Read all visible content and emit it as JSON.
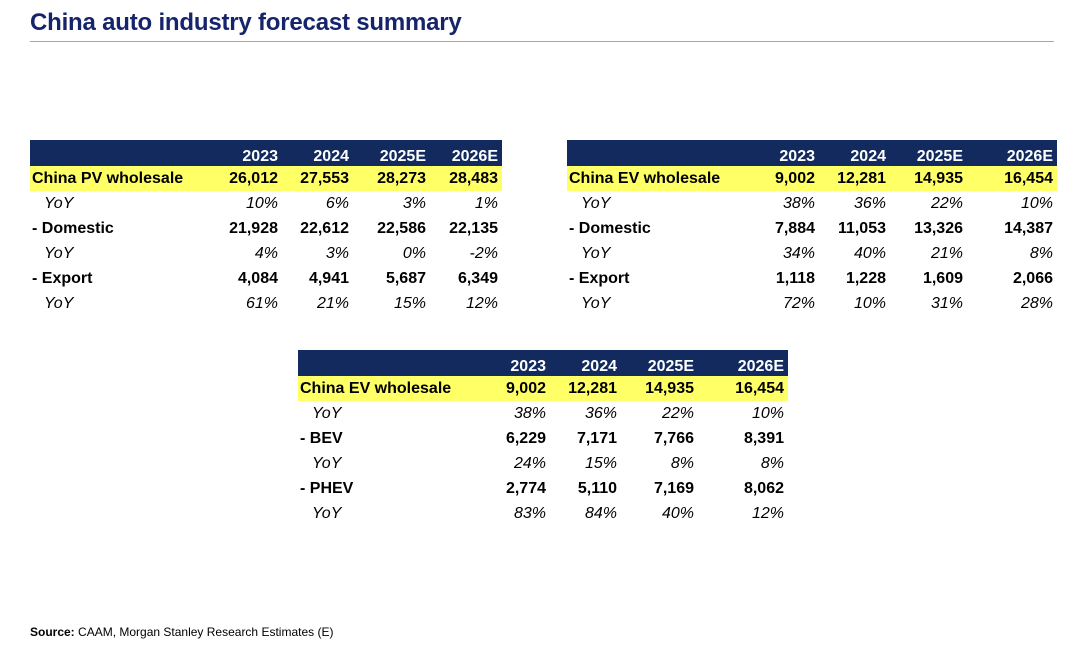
{
  "title": "China auto industry forecast summary",
  "colors": {
    "title": "#16246b",
    "header_bg": "#122a5e",
    "highlight": "#ffff66"
  },
  "tables": [
    {
      "id": "pv",
      "columns": [
        "2023",
        "2024",
        "2025E",
        "2026E"
      ],
      "rows": [
        {
          "type": "total",
          "label": "China PV wholesale",
          "values": [
            "26,012",
            "27,553",
            "28,273",
            "28,483"
          ]
        },
        {
          "type": "yoy",
          "label": "YoY",
          "values": [
            "10%",
            "6%",
            "3%",
            "1%"
          ]
        },
        {
          "type": "sub",
          "label": "- Domestic",
          "values": [
            "21,928",
            "22,612",
            "22,586",
            "22,135"
          ]
        },
        {
          "type": "yoy",
          "label": "YoY",
          "values": [
            "4%",
            "3%",
            "0%",
            "-2%"
          ]
        },
        {
          "type": "sub",
          "label": "- Export",
          "values": [
            "4,084",
            "4,941",
            "5,687",
            "6,349"
          ]
        },
        {
          "type": "yoy",
          "label": "YoY",
          "values": [
            "61%",
            "21%",
            "15%",
            "12%"
          ]
        }
      ]
    },
    {
      "id": "ev",
      "columns": [
        "2023",
        "2024",
        "2025E",
        "2026E"
      ],
      "rows": [
        {
          "type": "total",
          "label": "China EV wholesale",
          "values": [
            "9,002",
            "12,281",
            "14,935",
            "16,454"
          ]
        },
        {
          "type": "yoy",
          "label": "YoY",
          "values": [
            "38%",
            "36%",
            "22%",
            "10%"
          ]
        },
        {
          "type": "sub",
          "label": "- Domestic",
          "values": [
            "7,884",
            "11,053",
            "13,326",
            "14,387"
          ]
        },
        {
          "type": "yoy",
          "label": "YoY",
          "values": [
            "34%",
            "40%",
            "21%",
            "8%"
          ]
        },
        {
          "type": "sub",
          "label": "- Export",
          "values": [
            "1,118",
            "1,228",
            "1,609",
            "2,066"
          ]
        },
        {
          "type": "yoy",
          "label": "YoY",
          "values": [
            "72%",
            "10%",
            "31%",
            "28%"
          ]
        }
      ]
    },
    {
      "id": "mix",
      "columns": [
        "2023",
        "2024",
        "2025E",
        "2026E"
      ],
      "rows": [
        {
          "type": "total",
          "label": "China EV wholesale",
          "values": [
            "9,002",
            "12,281",
            "14,935",
            "16,454"
          ]
        },
        {
          "type": "yoy",
          "label": "YoY",
          "values": [
            "38%",
            "36%",
            "22%",
            "10%"
          ]
        },
        {
          "type": "sub",
          "label": "- BEV",
          "values": [
            "6,229",
            "7,171",
            "7,766",
            "8,391"
          ]
        },
        {
          "type": "yoy",
          "label": "YoY",
          "values": [
            "24%",
            "15%",
            "8%",
            "8%"
          ]
        },
        {
          "type": "sub",
          "label": "- PHEV",
          "values": [
            "2,774",
            "5,110",
            "7,169",
            "8,062"
          ]
        },
        {
          "type": "yoy",
          "label": "YoY",
          "values": [
            "83%",
            "84%",
            "40%",
            "12%"
          ]
        }
      ]
    }
  ],
  "source": {
    "label": "Source:",
    "text": "CAAM, Morgan Stanley Research Estimates (E)"
  }
}
